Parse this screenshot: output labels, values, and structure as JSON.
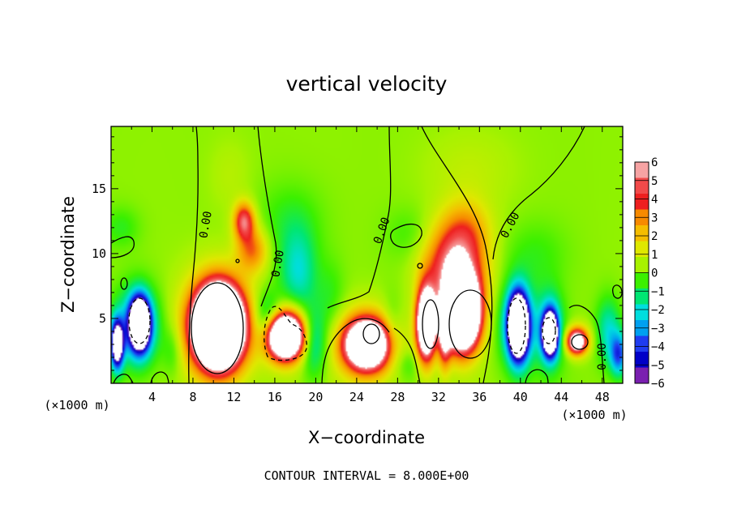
{
  "chart_data": {
    "type": "heatmap",
    "title": "vertical velocity",
    "xlabel": "X−coordinate",
    "ylabel": "Z−coordinate",
    "x_unit": "(×1000 m)",
    "x_unit_right": "(×1000 m)",
    "xlim": [
      0,
      50
    ],
    "ylim": [
      0,
      19.8
    ],
    "xticks": [
      4,
      8,
      12,
      16,
      20,
      24,
      28,
      32,
      36,
      40,
      44,
      48
    ],
    "yticks": [
      5,
      10,
      15
    ],
    "colorbar": {
      "levels": [
        6,
        5,
        4,
        3,
        2,
        1,
        0,
        -1,
        -2,
        -3,
        -4,
        -5,
        -6
      ],
      "colors": [
        "#f6a3a3",
        "#f24a4a",
        "#ee1f1f",
        "#f78a00",
        "#f5bd00",
        "#dfe800",
        "#a8f200",
        "#3cf000",
        "#00e673",
        "#00dede",
        "#00a0f0",
        "#1f3cf0",
        "#0000c8",
        "#7a1fb0"
      ]
    },
    "contour_label": "0.00",
    "footer": "CONTOUR INTERVAL = 8.000E+00",
    "cells": [
      {
        "x": 10.5,
        "z": 4.4,
        "sx": 2.0,
        "sz": 2.6,
        "v": 22
      },
      {
        "x": 10.4,
        "z": 4.4,
        "sx": 3.2,
        "sz": 3.8,
        "v": 6
      },
      {
        "x": 13.0,
        "z": 12.5,
        "sx": 1.0,
        "sz": 1.4,
        "v": 5.5
      },
      {
        "x": 13.8,
        "z": 10.3,
        "sx": 1.5,
        "sz": 1.7,
        "v": 3.5
      },
      {
        "x": 17.0,
        "z": 3.6,
        "sx": 1.5,
        "sz": 1.5,
        "v": 14
      },
      {
        "x": 17.2,
        "z": 3.8,
        "sx": 2.3,
        "sz": 2.2,
        "v": 4
      },
      {
        "x": 25.0,
        "z": 3.0,
        "sx": 1.9,
        "sz": 1.7,
        "v": 12
      },
      {
        "x": 25.0,
        "z": 3.0,
        "sx": 3.1,
        "sz": 2.7,
        "v": 4
      },
      {
        "x": 30.8,
        "z": 4.6,
        "sx": 0.9,
        "sz": 2.6,
        "v": 14
      },
      {
        "x": 32.6,
        "z": 3.8,
        "sx": 0.6,
        "sz": 2.4,
        "v": 6
      },
      {
        "x": 34.3,
        "z": 5.4,
        "sx": 1.6,
        "sz": 2.6,
        "v": 20
      },
      {
        "x": 33.5,
        "z": 8.8,
        "sx": 2.8,
        "sz": 3.0,
        "v": 6
      },
      {
        "x": 34.6,
        "z": 11.8,
        "sx": 2.4,
        "sz": 2.4,
        "v": 2.5
      },
      {
        "x": 45.5,
        "z": 3.2,
        "sx": 0.9,
        "sz": 0.9,
        "v": 8
      },
      {
        "x": 45.7,
        "z": 3.4,
        "sx": 1.4,
        "sz": 1.2,
        "v": 2
      },
      {
        "x": 11.6,
        "z": 16.0,
        "sx": 2.0,
        "sz": 2.8,
        "v": 0.5
      },
      {
        "x": 35.0,
        "z": 16.5,
        "sx": 4.5,
        "sz": 3.0,
        "v": 0.6
      },
      {
        "x": 2.8,
        "z": 4.6,
        "sx": 0.9,
        "sz": 1.8,
        "v": -14
      },
      {
        "x": 0.6,
        "z": 3.0,
        "sx": 0.6,
        "sz": 1.8,
        "v": -10
      },
      {
        "x": 2.6,
        "z": 4.4,
        "sx": 2.0,
        "sz": 2.9,
        "v": -4.5
      },
      {
        "x": 1.0,
        "z": 12.0,
        "sx": 1.8,
        "sz": 1.6,
        "v": -1
      },
      {
        "x": 15.3,
        "z": 5.0,
        "sx": 1.4,
        "sz": 2.0,
        "v": -3
      },
      {
        "x": 18.3,
        "z": 8.5,
        "sx": 1.8,
        "sz": 3.2,
        "v": -2.6
      },
      {
        "x": 19.8,
        "z": 3.2,
        "sx": 1.3,
        "sz": 2.6,
        "v": -3
      },
      {
        "x": 17.5,
        "z": 12.5,
        "sx": 3.2,
        "sz": 3.0,
        "v": -1
      },
      {
        "x": 21.5,
        "z": 6.5,
        "sx": 1.4,
        "sz": 3.0,
        "v": -1
      },
      {
        "x": 27.4,
        "z": 4.0,
        "sx": 1.0,
        "sz": 2.5,
        "v": -1.3
      },
      {
        "x": 29.0,
        "z": 1.5,
        "sx": 1.2,
        "sz": 1.2,
        "v": -1
      },
      {
        "x": 39.8,
        "z": 4.4,
        "sx": 0.9,
        "sz": 2.3,
        "v": -14
      },
      {
        "x": 39.8,
        "z": 4.5,
        "sx": 1.7,
        "sz": 3.2,
        "v": -4
      },
      {
        "x": 42.9,
        "z": 3.8,
        "sx": 0.7,
        "sz": 1.6,
        "v": -12
      },
      {
        "x": 42.9,
        "z": 4.2,
        "sx": 1.3,
        "sz": 2.8,
        "v": -3.5
      },
      {
        "x": 48.6,
        "z": 4.0,
        "sx": 1.2,
        "sz": 2.5,
        "v": -2.6
      },
      {
        "x": 49.6,
        "z": 2.2,
        "sx": 0.8,
        "sz": 1.6,
        "v": -4.5
      },
      {
        "x": 41.5,
        "z": 10.0,
        "sx": 3.0,
        "sz": 2.5,
        "v": -0.8
      },
      {
        "x": 29.0,
        "z": 11.5,
        "sx": 2.2,
        "sz": 2.0,
        "v": -0.7
      },
      {
        "x": 6.0,
        "z": 2.5,
        "sx": 1.0,
        "sz": 2.0,
        "v": -1.2
      }
    ]
  }
}
